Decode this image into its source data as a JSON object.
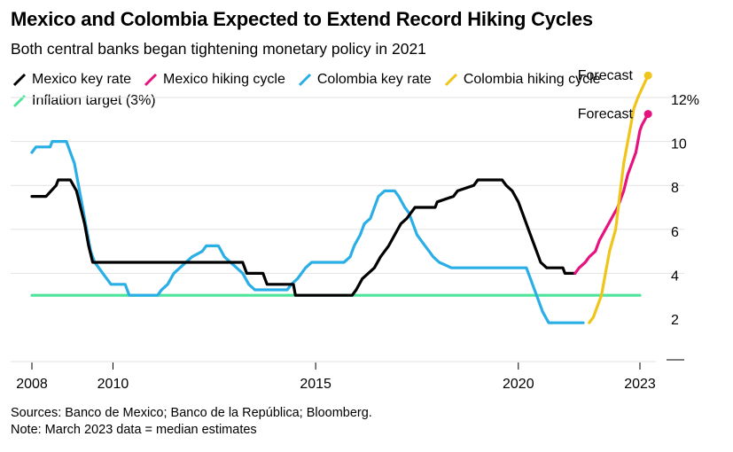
{
  "header": {
    "title": "Mexico and Colombia Expected to Extend Record Hiking Cycles",
    "subtitle": "Both central banks began tightening monetary policy in 2021"
  },
  "legend": {
    "items": [
      {
        "label": "Mexico key rate",
        "color": "#000000"
      },
      {
        "label": "Mexico hiking cycle",
        "color": "#e6127f"
      },
      {
        "label": "Colombia key rate",
        "color": "#2aaee6"
      },
      {
        "label": "Colombia hiking cycle",
        "color": "#f0c419"
      },
      {
        "label": "Inflation target (3%)",
        "color": "#4ee49a"
      }
    ]
  },
  "footer": {
    "sources": "Sources: Banco de Mexico; Banco de la República; Bloomberg.",
    "note": "Note: March 2023 data = median estimates"
  },
  "chart_data": {
    "type": "line",
    "xlim": [
      2008,
      2023.25
    ],
    "ylim": [
      1.9,
      12.5
    ],
    "x_ticks": [
      {
        "value": 2008,
        "label": "2008"
      },
      {
        "value": 2010,
        "label": "2010"
      },
      {
        "value": 2015,
        "label": "2015"
      },
      {
        "value": 2020,
        "label": "2020"
      },
      {
        "value": 2023,
        "label": "2023"
      }
    ],
    "y_ticks": [
      {
        "value": 2,
        "label": "2"
      },
      {
        "value": 4,
        "label": "4"
      },
      {
        "value": 6,
        "label": "6"
      },
      {
        "value": 8,
        "label": "8"
      },
      {
        "value": 10,
        "label": "10"
      },
      {
        "value": 12,
        "label": "12%"
      }
    ],
    "grid": true,
    "annotations": [
      {
        "text": "Forecast",
        "x": 2023.0,
        "y": 12.3,
        "series": "Colombia hiking cycle"
      },
      {
        "text": "Forecast",
        "x": 2023.0,
        "y": 10.5,
        "series": "Mexico hiking cycle"
      }
    ],
    "series": [
      {
        "name": "Mexico key rate",
        "color": "#000000",
        "points": [
          [
            2008.0,
            7.5
          ],
          [
            2008.35,
            7.5
          ],
          [
            2008.6,
            8.0
          ],
          [
            2008.65,
            8.25
          ],
          [
            2008.95,
            8.25
          ],
          [
            2009.1,
            7.75
          ],
          [
            2009.2,
            7.0
          ],
          [
            2009.3,
            6.25
          ],
          [
            2009.4,
            5.25
          ],
          [
            2009.5,
            4.5
          ],
          [
            2011.0,
            4.5
          ],
          [
            2012.0,
            4.5
          ],
          [
            2013.2,
            4.5
          ],
          [
            2013.3,
            4.0
          ],
          [
            2013.7,
            4.0
          ],
          [
            2013.8,
            3.5
          ],
          [
            2014.45,
            3.5
          ],
          [
            2014.5,
            3.0
          ],
          [
            2015.9,
            3.0
          ],
          [
            2016.0,
            3.25
          ],
          [
            2016.15,
            3.75
          ],
          [
            2016.45,
            4.25
          ],
          [
            2016.6,
            4.75
          ],
          [
            2016.8,
            5.25
          ],
          [
            2016.95,
            5.75
          ],
          [
            2017.1,
            6.25
          ],
          [
            2017.25,
            6.5
          ],
          [
            2017.45,
            7.0
          ],
          [
            2017.95,
            7.0
          ],
          [
            2018.0,
            7.25
          ],
          [
            2018.4,
            7.5
          ],
          [
            2018.5,
            7.75
          ],
          [
            2018.9,
            8.0
          ],
          [
            2019.0,
            8.25
          ],
          [
            2019.6,
            8.25
          ],
          [
            2019.7,
            8.0
          ],
          [
            2019.85,
            7.75
          ],
          [
            2020.0,
            7.25
          ],
          [
            2020.15,
            6.5
          ],
          [
            2020.25,
            6.0
          ],
          [
            2020.35,
            5.5
          ],
          [
            2020.45,
            5.0
          ],
          [
            2020.55,
            4.5
          ],
          [
            2020.7,
            4.25
          ],
          [
            2021.1,
            4.25
          ],
          [
            2021.15,
            4.0
          ],
          [
            2021.4,
            4.0
          ]
        ]
      },
      {
        "name": "Mexico hiking cycle",
        "color": "#e6127f",
        "points": [
          [
            2021.4,
            4.0
          ],
          [
            2021.5,
            4.25
          ],
          [
            2021.65,
            4.5
          ],
          [
            2021.75,
            4.75
          ],
          [
            2021.9,
            5.0
          ],
          [
            2022.0,
            5.5
          ],
          [
            2022.15,
            6.0
          ],
          [
            2022.3,
            6.5
          ],
          [
            2022.45,
            7.0
          ],
          [
            2022.6,
            7.75
          ],
          [
            2022.7,
            8.5
          ],
          [
            2022.8,
            9.0
          ],
          [
            2022.9,
            9.5
          ],
          [
            2022.95,
            10.0
          ],
          [
            2023.0,
            10.5
          ],
          [
            2023.05,
            10.75
          ],
          [
            2023.2,
            11.25
          ]
        ]
      },
      {
        "name": "Colombia key rate",
        "color": "#2aaee6",
        "points": [
          [
            2008.0,
            9.5
          ],
          [
            2008.1,
            9.75
          ],
          [
            2008.45,
            9.75
          ],
          [
            2008.5,
            10.0
          ],
          [
            2008.85,
            10.0
          ],
          [
            2008.95,
            9.5
          ],
          [
            2009.05,
            9.0
          ],
          [
            2009.15,
            8.0
          ],
          [
            2009.25,
            7.0
          ],
          [
            2009.35,
            6.0
          ],
          [
            2009.45,
            5.0
          ],
          [
            2009.55,
            4.5
          ],
          [
            2009.75,
            4.0
          ],
          [
            2009.95,
            3.5
          ],
          [
            2010.3,
            3.5
          ],
          [
            2010.4,
            3.0
          ],
          [
            2011.1,
            3.0
          ],
          [
            2011.2,
            3.25
          ],
          [
            2011.35,
            3.5
          ],
          [
            2011.5,
            4.0
          ],
          [
            2011.65,
            4.25
          ],
          [
            2011.8,
            4.5
          ],
          [
            2011.95,
            4.75
          ],
          [
            2012.2,
            5.0
          ],
          [
            2012.3,
            5.25
          ],
          [
            2012.6,
            5.25
          ],
          [
            2012.75,
            4.75
          ],
          [
            2012.9,
            4.5
          ],
          [
            2013.05,
            4.25
          ],
          [
            2013.2,
            4.0
          ],
          [
            2013.35,
            3.5
          ],
          [
            2013.5,
            3.25
          ],
          [
            2014.3,
            3.25
          ],
          [
            2014.4,
            3.5
          ],
          [
            2014.55,
            3.75
          ],
          [
            2014.65,
            4.0
          ],
          [
            2014.75,
            4.25
          ],
          [
            2014.9,
            4.5
          ],
          [
            2015.7,
            4.5
          ],
          [
            2015.85,
            4.75
          ],
          [
            2015.95,
            5.25
          ],
          [
            2016.1,
            5.75
          ],
          [
            2016.2,
            6.25
          ],
          [
            2016.35,
            6.5
          ],
          [
            2016.45,
            7.0
          ],
          [
            2016.55,
            7.5
          ],
          [
            2016.7,
            7.75
          ],
          [
            2016.95,
            7.75
          ],
          [
            2017.05,
            7.5
          ],
          [
            2017.2,
            7.0
          ],
          [
            2017.3,
            6.75
          ],
          [
            2017.4,
            6.25
          ],
          [
            2017.5,
            5.75
          ],
          [
            2017.6,
            5.5
          ],
          [
            2017.7,
            5.25
          ],
          [
            2017.8,
            5.0
          ],
          [
            2017.9,
            4.75
          ],
          [
            2018.05,
            4.5
          ],
          [
            2018.35,
            4.25
          ],
          [
            2020.2,
            4.25
          ],
          [
            2020.3,
            3.75
          ],
          [
            2020.4,
            3.25
          ],
          [
            2020.5,
            2.75
          ],
          [
            2020.6,
            2.25
          ],
          [
            2020.75,
            1.75
          ],
          [
            2021.6,
            1.75
          ]
        ]
      },
      {
        "name": "Colombia hiking cycle",
        "color": "#f0c419",
        "points": [
          [
            2021.75,
            1.75
          ],
          [
            2021.85,
            2.0
          ],
          [
            2021.95,
            2.5
          ],
          [
            2022.05,
            3.0
          ],
          [
            2022.15,
            4.0
          ],
          [
            2022.25,
            5.0
          ],
          [
            2022.4,
            6.0
          ],
          [
            2022.5,
            7.5
          ],
          [
            2022.6,
            9.0
          ],
          [
            2022.7,
            10.0
          ],
          [
            2022.8,
            11.0
          ],
          [
            2022.85,
            11.5
          ],
          [
            2022.95,
            12.0
          ],
          [
            2023.2,
            13.0
          ]
        ]
      },
      {
        "name": "Inflation target (3%)",
        "color": "#4ee49a",
        "points": [
          [
            2008.0,
            3.0
          ],
          [
            2023.0,
            3.0
          ]
        ]
      }
    ]
  }
}
